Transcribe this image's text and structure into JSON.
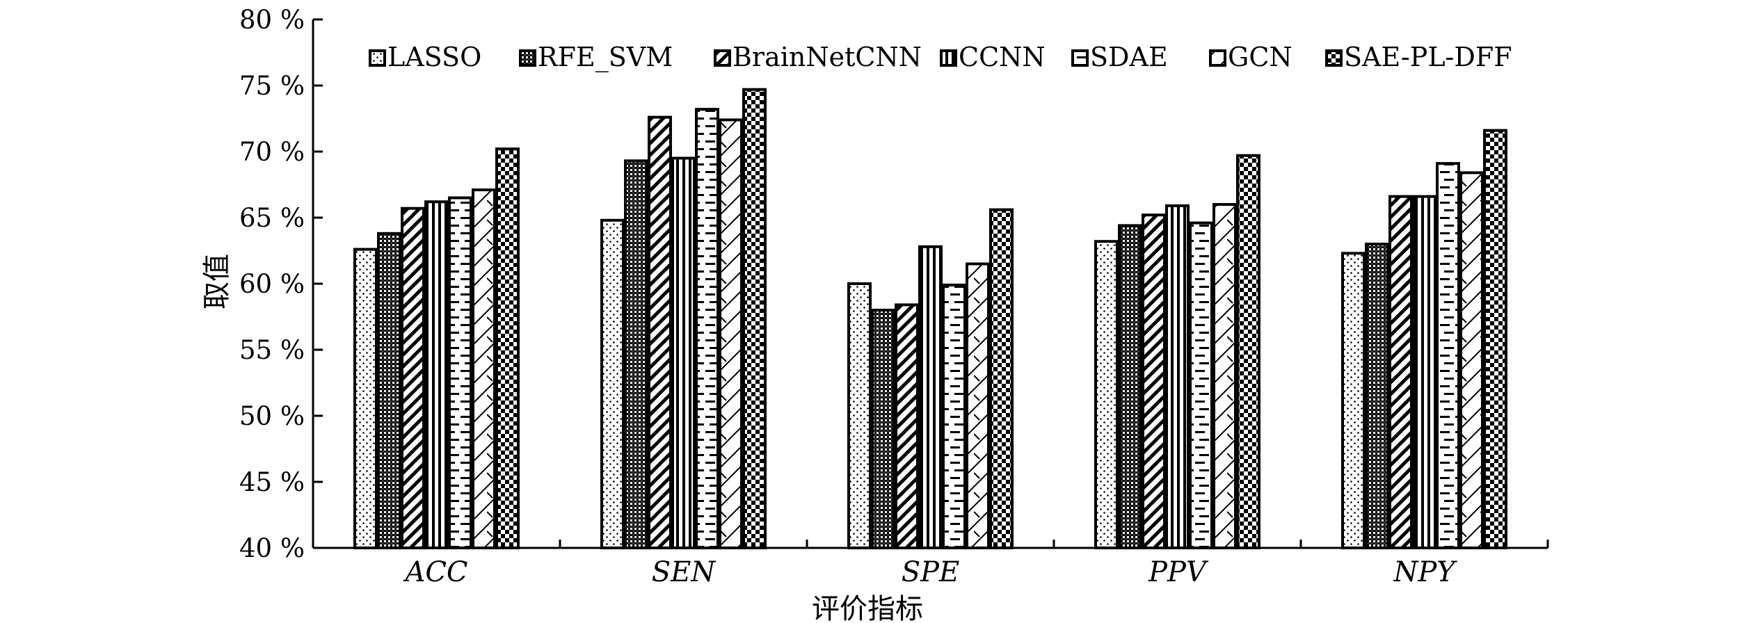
{
  "chart_data": {
    "type": "bar",
    "categories": [
      "ACC",
      "SEN",
      "SPE",
      "PPV",
      "NPY"
    ],
    "series": [
      {
        "name": "LASSO",
        "values": [
          62.6,
          64.8,
          60.0,
          63.2,
          62.3
        ],
        "pattern": "dots"
      },
      {
        "name": "RFE_SVM",
        "values": [
          63.8,
          69.3,
          58.0,
          64.4,
          63.0
        ],
        "pattern": "dense"
      },
      {
        "name": "BrainNetCNN",
        "values": [
          65.7,
          72.6,
          58.4,
          65.2,
          66.6
        ],
        "pattern": "diag"
      },
      {
        "name": "CCNN",
        "values": [
          66.2,
          69.5,
          62.8,
          65.9,
          66.6
        ],
        "pattern": "vlines"
      },
      {
        "name": "SDAE",
        "values": [
          66.5,
          73.2,
          59.9,
          64.6,
          69.1
        ],
        "pattern": "hdash"
      },
      {
        "name": "GCN",
        "values": [
          67.1,
          72.4,
          61.5,
          66.0,
          68.4
        ],
        "pattern": "cross"
      },
      {
        "name": "SAE-PL-DFF",
        "values": [
          70.2,
          74.7,
          65.6,
          69.7,
          71.6
        ],
        "pattern": "checker"
      }
    ],
    "yticks": [
      "40 %",
      "45 %",
      "50 %",
      "55 %",
      "60 %",
      "65 %",
      "70 %",
      "75 %",
      "80 %"
    ],
    "ylim": [
      40,
      80
    ],
    "xlabel": "评价指标",
    "ylabel": "取值",
    "legend_position": "top"
  }
}
